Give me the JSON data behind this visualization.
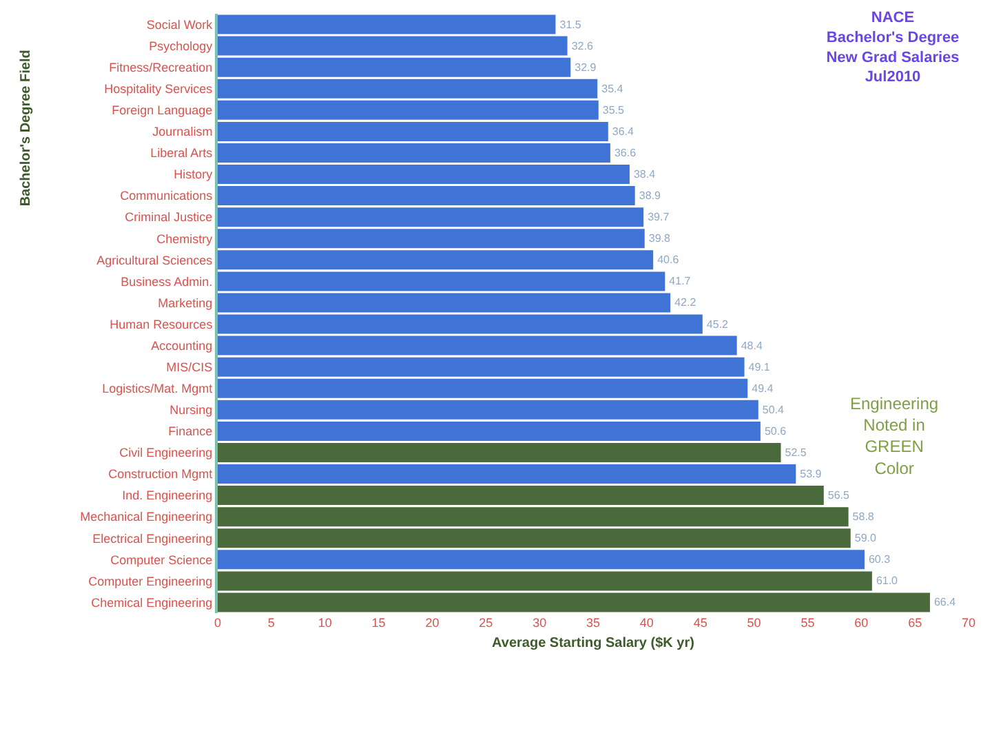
{
  "chart_data": {
    "type": "bar",
    "orientation": "horizontal",
    "title": "NACE\nBachelor's Degree\nNew Grad Salaries\nJul2010",
    "xlabel": "Average Starting Salary ($K yr)",
    "ylabel": "Bachelor's Degree Field",
    "categories": [
      "Social Work",
      "Psychology",
      "Fitness/Recreation",
      "Hospitality Services",
      "Foreign Language",
      "Journalism",
      "Liberal Arts",
      "History",
      "Communications",
      "Criminal Justice",
      "Chemistry",
      "Agricultural Sciences",
      "Business Admin.",
      "Marketing",
      "Human Resources",
      "Accounting",
      "MIS/CIS",
      "Logistics/Mat. Mgmt",
      "Nursing",
      "Finance",
      "Civil Engineering",
      "Construction Mgmt",
      "Ind. Engineering",
      "Mechanical Engineering",
      "Electrical Engineering",
      "Computer Science",
      "Computer Engineering",
      "Chemical Engineering"
    ],
    "values": [
      31.5,
      32.6,
      32.9,
      35.4,
      35.5,
      36.4,
      36.6,
      38.4,
      38.9,
      39.7,
      39.8,
      40.6,
      41.7,
      42.2,
      45.2,
      48.4,
      49.1,
      49.4,
      50.4,
      50.6,
      52.5,
      53.9,
      56.5,
      58.8,
      59.0,
      60.3,
      61.0,
      66.4
    ],
    "value_labels": [
      "31.5",
      "32.6",
      "32.9",
      "35.4",
      "35.5",
      "36.4",
      "36.6",
      "38.4",
      "38.9",
      "39.7",
      "39.8",
      "40.6",
      "41.7",
      "42.2",
      "45.2",
      "48.4",
      "49.1",
      "49.4",
      "50.4",
      "50.6",
      "52.5",
      "53.9",
      "56.5",
      "58.8",
      "59.0",
      "60.3",
      "61.0",
      "66.4"
    ],
    "colors": [
      "#3f74d6",
      "#3f74d6",
      "#3f74d6",
      "#3f74d6",
      "#3f74d6",
      "#3f74d6",
      "#3f74d6",
      "#3f74d6",
      "#3f74d6",
      "#3f74d6",
      "#3f74d6",
      "#3f74d6",
      "#3f74d6",
      "#3f74d6",
      "#3f74d6",
      "#3f74d6",
      "#3f74d6",
      "#3f74d6",
      "#3f74d6",
      "#3f74d6",
      "#4a6a3c",
      "#3f74d6",
      "#4a6a3c",
      "#4a6a3c",
      "#4a6a3c",
      "#3f74d6",
      "#4a6a3c",
      "#4a6a3c"
    ],
    "xlim": [
      0,
      70
    ],
    "xticks": [
      0,
      5,
      10,
      15,
      20,
      25,
      30,
      35,
      40,
      45,
      50,
      55,
      60,
      65,
      70
    ],
    "annotations": [
      "Engineering\nNoted in\nGREEN\nColor"
    ]
  }
}
